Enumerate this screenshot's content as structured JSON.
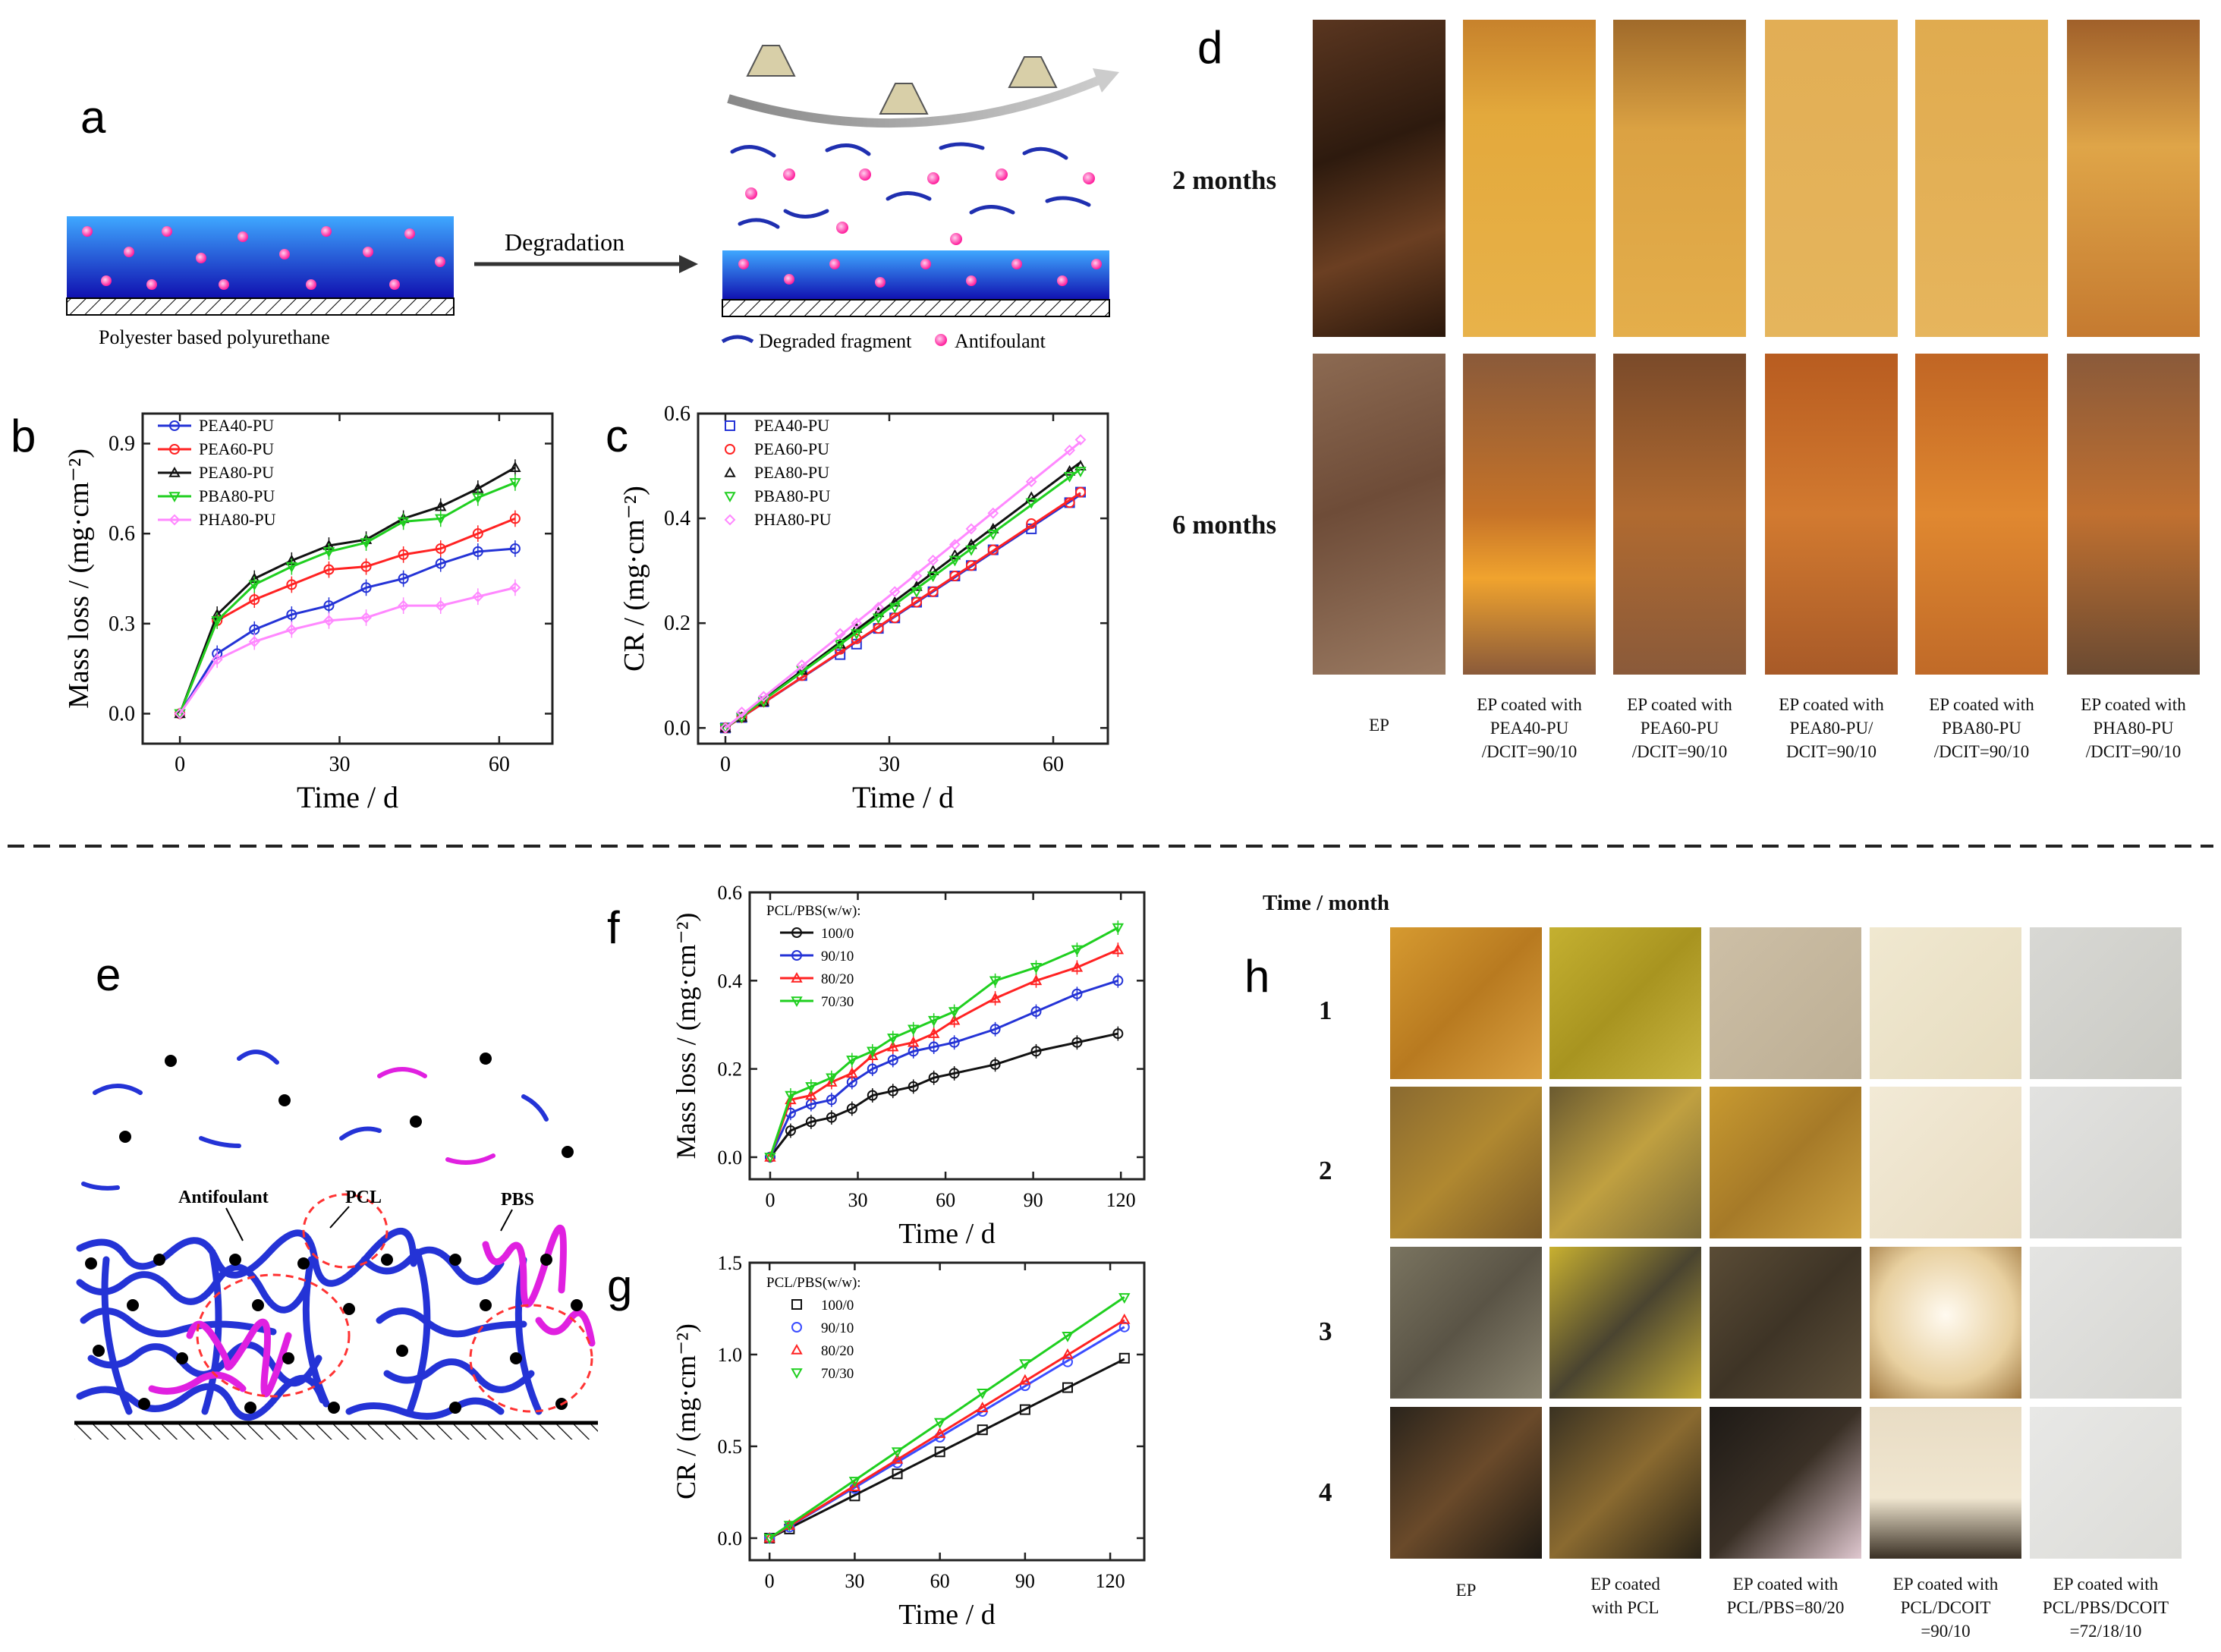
{
  "panels": {
    "a": "a",
    "b": "b",
    "c": "c",
    "d": "d",
    "e": "e",
    "f": "f",
    "g": "g",
    "h": "h"
  },
  "schematic_a": {
    "arrow_label": "Degradation",
    "left_caption": "Polyester based polyurethane",
    "legend_fragment": "Degraded fragment",
    "legend_antifoulant": "Antifoulant"
  },
  "schematic_e": {
    "label_antifoulant": "Antifoulant",
    "label_pcl": "PCL",
    "label_pbs": "PBS"
  },
  "colors": {
    "blue": "#2433d6",
    "red": "#ff2222",
    "black": "#111111",
    "green": "#1fcf1f",
    "pink": "#ff88ff",
    "magenta": "#e020e0",
    "coating": "#1a36e0"
  },
  "chart_data": [
    {
      "id": "b",
      "type": "line",
      "xlabel": "Time / d",
      "ylabel": "Mass loss / (mg·cm⁻²)",
      "xlim": [
        -7,
        70
      ],
      "ylim": [
        -0.1,
        1.0
      ],
      "xticks": [
        0,
        30,
        60
      ],
      "xtick_labels": [
        "0",
        "30",
        "60"
      ],
      "yticks": [
        0.0,
        0.3,
        0.6,
        0.9
      ],
      "ytick_labels": [
        "0.0",
        "0.3",
        "0.6",
        "0.9"
      ],
      "legend_position": "top-left",
      "x": [
        0,
        7,
        14,
        21,
        28,
        35,
        42,
        49,
        56,
        63
      ],
      "series": [
        {
          "name": "PEA40-PU",
          "color": "#2433d6",
          "marker": "circle",
          "values": [
            0,
            0.2,
            0.28,
            0.33,
            0.36,
            0.42,
            0.45,
            0.5,
            0.54,
            0.55
          ]
        },
        {
          "name": "PEA60-PU",
          "color": "#ff2222",
          "marker": "circle",
          "values": [
            0,
            0.31,
            0.38,
            0.43,
            0.48,
            0.49,
            0.53,
            0.55,
            0.6,
            0.65
          ]
        },
        {
          "name": "PEA80-PU",
          "color": "#111111",
          "marker": "triangle",
          "values": [
            0,
            0.33,
            0.45,
            0.51,
            0.56,
            0.58,
            0.65,
            0.69,
            0.75,
            0.82
          ]
        },
        {
          "name": "PBA80-PU",
          "color": "#1fcf1f",
          "marker": "triangle-down",
          "values": [
            0,
            0.31,
            0.43,
            0.49,
            0.54,
            0.57,
            0.64,
            0.65,
            0.72,
            0.77
          ]
        },
        {
          "name": "PHA80-PU",
          "color": "#ff88ff",
          "marker": "diamond",
          "values": [
            0,
            0.18,
            0.24,
            0.28,
            0.31,
            0.32,
            0.36,
            0.36,
            0.39,
            0.42
          ]
        }
      ]
    },
    {
      "id": "c",
      "type": "scatter",
      "xlabel": "Time / d",
      "ylabel": "CR / (mg·cm⁻²)",
      "xlim": [
        -5,
        70
      ],
      "ylim": [
        -0.03,
        0.6
      ],
      "xticks": [
        0,
        30,
        60
      ],
      "xtick_labels": [
        "0",
        "30",
        "60"
      ],
      "yticks": [
        0.0,
        0.2,
        0.4,
        0.6
      ],
      "ytick_labels": [
        "0.0",
        "0.2",
        "0.4",
        "0.6"
      ],
      "legend_position": "top-left",
      "x": [
        0,
        3,
        7,
        14,
        21,
        24,
        28,
        31,
        35,
        38,
        42,
        45,
        49,
        56,
        63,
        65
      ],
      "series": [
        {
          "name": "PEA40-PU",
          "color": "#2433d6",
          "marker": "square",
          "slope": 0.00685,
          "values": [
            0,
            0.02,
            0.05,
            0.1,
            0.14,
            0.16,
            0.19,
            0.21,
            0.24,
            0.26,
            0.29,
            0.31,
            0.34,
            0.38,
            0.43,
            0.45
          ]
        },
        {
          "name": "PEA60-PU",
          "color": "#ff2222",
          "marker": "circle",
          "slope": 0.0069,
          "values": [
            0,
            0.02,
            0.05,
            0.1,
            0.15,
            0.17,
            0.19,
            0.21,
            0.24,
            0.26,
            0.29,
            0.31,
            0.34,
            0.39,
            0.43,
            0.45
          ]
        },
        {
          "name": "PEA80-PU",
          "color": "#111111",
          "marker": "triangle",
          "slope": 0.0078,
          "values": [
            0,
            0.02,
            0.05,
            0.11,
            0.16,
            0.19,
            0.22,
            0.24,
            0.27,
            0.3,
            0.33,
            0.35,
            0.38,
            0.44,
            0.49,
            0.5
          ]
        },
        {
          "name": "PBA80-PU",
          "color": "#1fcf1f",
          "marker": "triangle-down",
          "slope": 0.0076,
          "values": [
            0,
            0.02,
            0.05,
            0.11,
            0.16,
            0.18,
            0.21,
            0.23,
            0.26,
            0.29,
            0.32,
            0.34,
            0.37,
            0.43,
            0.48,
            0.49
          ]
        },
        {
          "name": "PHA80-PU",
          "color": "#ff88ff",
          "marker": "diamond",
          "slope": 0.0084,
          "values": [
            0,
            0.03,
            0.06,
            0.12,
            0.18,
            0.2,
            0.23,
            0.26,
            0.29,
            0.32,
            0.35,
            0.38,
            0.41,
            0.47,
            0.53,
            0.55
          ]
        }
      ]
    },
    {
      "id": "f",
      "type": "line",
      "xlabel": "Time / d",
      "ylabel": "Mass loss / (mg·cm⁻²)",
      "xlim": [
        -7,
        128
      ],
      "ylim": [
        -0.05,
        0.6
      ],
      "xticks": [
        0,
        30,
        60,
        90,
        120
      ],
      "xtick_labels": [
        "0",
        "30",
        "60",
        "90",
        "120"
      ],
      "yticks": [
        0.0,
        0.2,
        0.4,
        0.6
      ],
      "ytick_labels": [
        "0.0",
        "0.2",
        "0.4",
        "0.6"
      ],
      "legend_title": "PCL/PBS(w/w):",
      "legend_position": "top-left",
      "x": [
        0,
        7,
        14,
        21,
        28,
        35,
        42,
        49,
        56,
        63,
        77,
        91,
        105,
        119
      ],
      "series": [
        {
          "name": "100/0",
          "color": "#111111",
          "marker": "circle",
          "values": [
            0,
            0.06,
            0.08,
            0.09,
            0.11,
            0.14,
            0.15,
            0.16,
            0.18,
            0.19,
            0.21,
            0.24,
            0.26,
            0.28
          ]
        },
        {
          "name": "90/10",
          "color": "#2433d6",
          "marker": "circle",
          "values": [
            0,
            0.1,
            0.12,
            0.13,
            0.17,
            0.2,
            0.22,
            0.24,
            0.25,
            0.26,
            0.29,
            0.33,
            0.37,
            0.4
          ]
        },
        {
          "name": "80/20",
          "color": "#ff2222",
          "marker": "triangle",
          "values": [
            0,
            0.13,
            0.14,
            0.17,
            0.19,
            0.23,
            0.25,
            0.26,
            0.28,
            0.31,
            0.36,
            0.4,
            0.43,
            0.47
          ]
        },
        {
          "name": "70/30",
          "color": "#1fcf1f",
          "marker": "triangle-down",
          "values": [
            0,
            0.14,
            0.16,
            0.18,
            0.22,
            0.24,
            0.27,
            0.29,
            0.31,
            0.33,
            0.4,
            0.43,
            0.47,
            0.52
          ]
        }
      ]
    },
    {
      "id": "g",
      "type": "scatter",
      "xlabel": "Time / d",
      "ylabel": "CR / (mg·cm⁻²)",
      "xlim": [
        -7,
        132
      ],
      "ylim": [
        -0.12,
        1.5
      ],
      "xticks": [
        0,
        30,
        60,
        90,
        120
      ],
      "xtick_labels": [
        "0",
        "30",
        "60",
        "90",
        "120"
      ],
      "yticks": [
        0.0,
        0.5,
        1.0,
        1.5
      ],
      "ytick_labels": [
        "0.0",
        "0.5",
        "1.0",
        "1.5"
      ],
      "legend_title": "PCL/PBS(w/w):",
      "legend_position": "top-left",
      "x": [
        0,
        7,
        30,
        45,
        60,
        75,
        90,
        105,
        125
      ],
      "series": [
        {
          "name": "100/0",
          "color": "#111111",
          "marker": "square",
          "slope": 0.0078,
          "values": [
            0,
            0.05,
            0.23,
            0.35,
            0.47,
            0.59,
            0.7,
            0.82,
            0.98
          ]
        },
        {
          "name": "90/10",
          "color": "#3a4cff",
          "marker": "circle",
          "slope": 0.0092,
          "values": [
            0,
            0.06,
            0.27,
            0.41,
            0.55,
            0.69,
            0.83,
            0.96,
            1.15
          ]
        },
        {
          "name": "80/20",
          "color": "#ff2222",
          "marker": "triangle",
          "slope": 0.0095,
          "values": [
            0,
            0.07,
            0.28,
            0.43,
            0.57,
            0.71,
            0.86,
            1.0,
            1.19
          ]
        },
        {
          "name": "70/30",
          "color": "#1fcf1f",
          "marker": "triangle-down",
          "slope": 0.0105,
          "values": [
            0,
            0.07,
            0.31,
            0.47,
            0.63,
            0.79,
            0.95,
            1.1,
            1.31
          ]
        }
      ]
    }
  ],
  "panel_d": {
    "row_labels": [
      "2 months",
      "6 months"
    ],
    "captions": [
      "EP",
      "EP coated with\nPEA40-PU\n/DCIT=90/10",
      "EP coated with\nPEA60-PU\n/DCIT=90/10",
      "EP coated with\nPEA80-PU/\nDCIT=90/10",
      "EP coated with\nPBA80-PU\n/DCIT=90/10",
      "EP coated with\nPHA80-PU\n/DCIT=90/10"
    ]
  },
  "panel_h": {
    "header": "Time / month",
    "row_labels": [
      "1",
      "2",
      "3",
      "4"
    ],
    "captions": [
      "EP",
      "EP coated\nwith PCL",
      "EP coated with\nPCL/PBS=80/20",
      "EP coated with\nPCL/DCOIT\n=90/10",
      "EP coated with\nPCL/PBS/DCOIT\n=72/18/10"
    ]
  }
}
